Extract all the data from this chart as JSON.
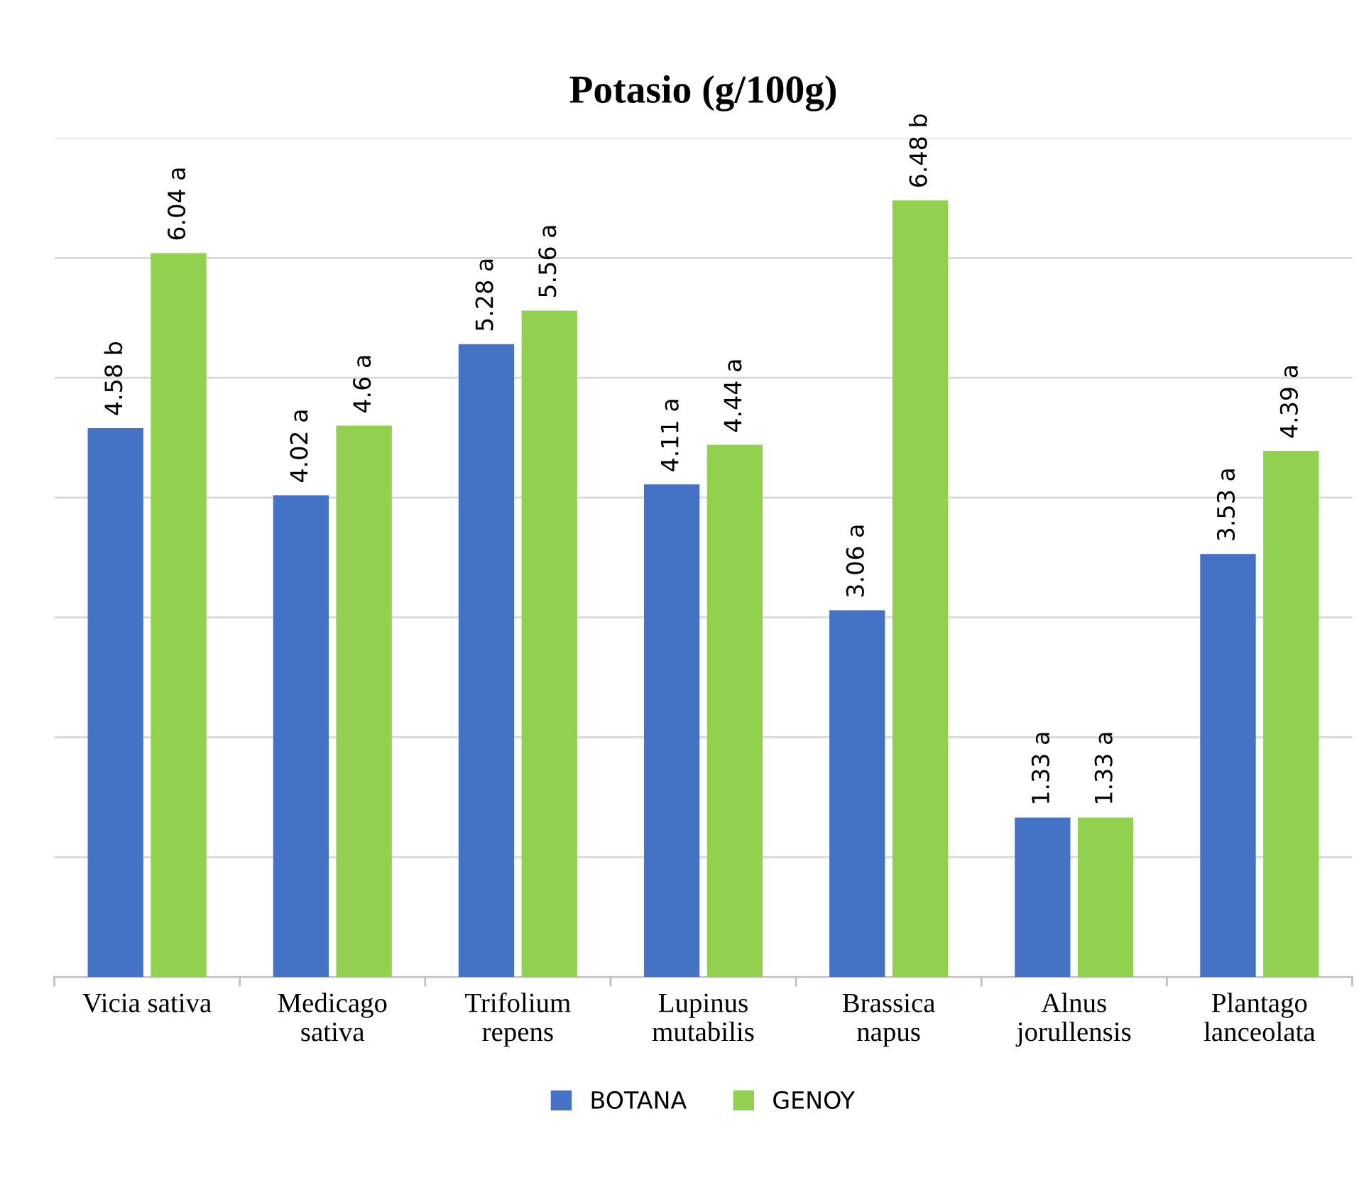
{
  "chart_data": {
    "type": "bar",
    "title": "Potasio (g/100g)",
    "categories": [
      "Vicia sativa",
      "Medicago\nsativa",
      "Trifolium\nrepens",
      "Lupinus\nmutabilis",
      "Brassica\nnapus",
      "Alnus\njorullensis",
      "Plantago\nlanceolata"
    ],
    "series": [
      {
        "name": "BOTANA",
        "color": "#4472c4",
        "values": [
          4.58,
          4.02,
          5.28,
          4.11,
          3.06,
          1.33,
          3.53
        ],
        "value_labels": [
          "4.58 b",
          "4.02 a",
          "5.28 a",
          "4.11 a",
          "3.06 a",
          "1.33 a",
          "3.53 a"
        ]
      },
      {
        "name": "GENOY",
        "color": "#92d050",
        "values": [
          6.04,
          4.6,
          5.56,
          4.44,
          6.48,
          1.33,
          4.39
        ],
        "value_labels": [
          "6.04 a",
          "4.6 a",
          "5.56 a",
          "4.44 a",
          "6.48 b",
          "1.33 a",
          "4.39 a"
        ]
      }
    ],
    "ylim": [
      0,
      7
    ],
    "yticks": [
      {
        "value": 0,
        "label": null
      },
      {
        "value": 1,
        "label": null
      },
      {
        "value": 2,
        "label": null
      },
      {
        "value": 3,
        "label": null
      },
      {
        "value": 4,
        "label": null
      },
      {
        "value": 5,
        "label": null
      },
      {
        "value": 6,
        "label": null
      },
      {
        "value": 7,
        "label": null
      }
    ],
    "tick_labels": "x",
    "grid": "y",
    "legend": "bottom"
  }
}
